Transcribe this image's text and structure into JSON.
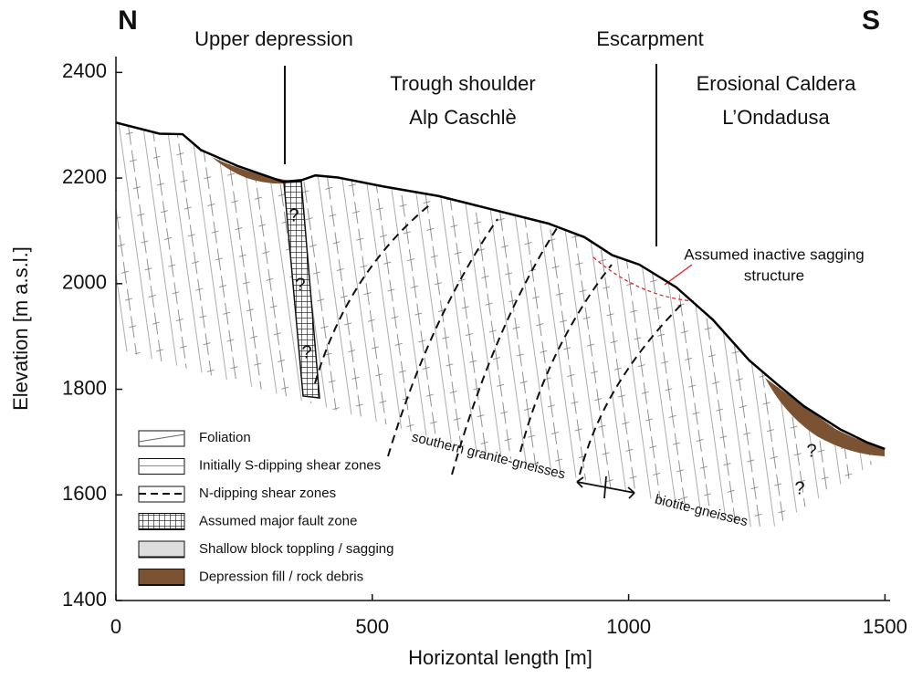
{
  "chart_data": {
    "type": "line",
    "x_label": "Horizontal length [m]",
    "y_label": "Elevation [m a.s.l.]",
    "x": [
      0,
      85,
      130,
      166,
      237,
      326,
      362,
      389,
      433,
      522,
      629,
      736,
      843,
      914,
      968,
      1021,
      1093,
      1164,
      1235,
      1288,
      1342,
      1413,
      1466,
      1500
    ],
    "values": [
      2305,
      2284,
      2283,
      2253,
      2223,
      2193,
      2196,
      2205,
      2201,
      2184,
      2166,
      2140,
      2114,
      2088,
      2054,
      2036,
      1993,
      1932,
      1855,
      1811,
      1768,
      1724,
      1699,
      1687
    ],
    "color": "#000000",
    "xlim": [
      0,
      1510
    ],
    "xticks": [
      0,
      500,
      1000,
      1500
    ],
    "ylim": [
      1400,
      2430
    ],
    "yticks": [
      1400,
      1600,
      1800,
      2000,
      2200,
      2400
    ],
    "annotations": [
      "N",
      "S",
      "Upper depression",
      "Escarpment",
      "Trough shoulder",
      "Alp Caschlè",
      "Erosional Caldera",
      "L’Ondadusa",
      "Assumed inactive sagging",
      "structure",
      "southern granite-gneisses",
      "biotite-gneisses",
      "?",
      "?",
      "?",
      "?",
      "?"
    ],
    "legend": [
      "Foliation",
      "Initially S-dipping shear zones",
      "N-dipping shear zones",
      "Assumed major fault zone",
      "Shallow block toppling / sagging",
      "Depression fill / rock debris"
    ]
  }
}
